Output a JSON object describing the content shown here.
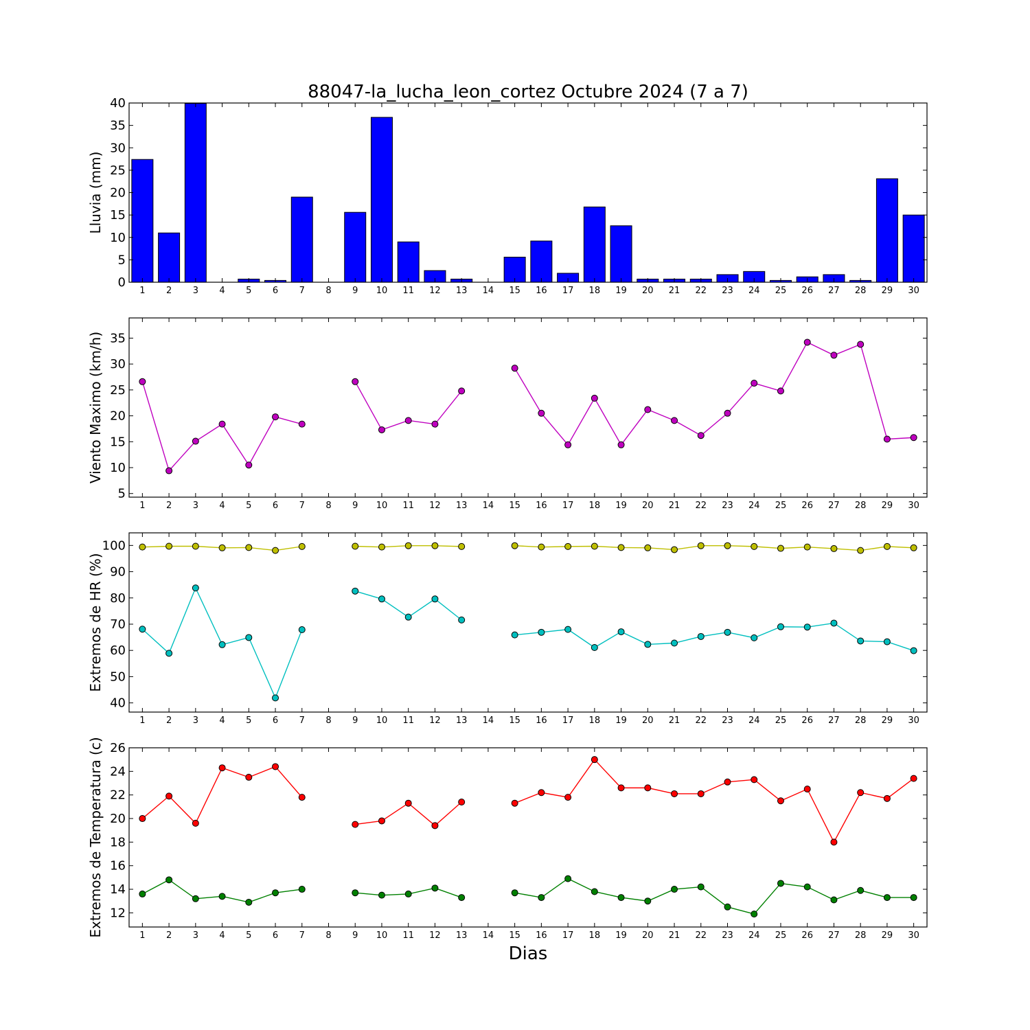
{
  "figure": {
    "title": "88047-la_lucha_leon_cortez Octubre 2024  (7 a 7)",
    "xlabel": "Dias"
  },
  "chart_data": [
    {
      "type": "bar",
      "ylabel": "Lluvia (mm)",
      "ylim": [
        0,
        40
      ],
      "yticks": [
        0,
        5,
        10,
        15,
        20,
        25,
        30,
        35,
        40
      ],
      "xlim": [
        0.5,
        30.5
      ],
      "grid": false,
      "x": [
        1,
        2,
        3,
        4,
        5,
        6,
        7,
        8,
        9,
        10,
        11,
        12,
        13,
        14,
        15,
        16,
        17,
        18,
        19,
        20,
        21,
        22,
        23,
        24,
        25,
        26,
        27,
        28,
        29,
        30
      ],
      "series": [
        {
          "color": "#0000ff",
          "values": [
            27.4,
            11.0,
            39.9,
            0,
            0.7,
            0.4,
            19.0,
            0,
            15.6,
            36.8,
            9.0,
            2.6,
            0.7,
            0,
            5.6,
            9.2,
            2.0,
            16.8,
            12.6,
            0.7,
            0.7,
            0.7,
            1.7,
            2.4,
            0.4,
            1.2,
            1.7,
            0.4,
            23.1,
            15.0
          ]
        }
      ]
    },
    {
      "type": "line",
      "ylabel": "Viento Maximo (km/h)",
      "ylim": [
        4.3,
        38.9
      ],
      "yticks": [
        5,
        10,
        15,
        20,
        25,
        30,
        35
      ],
      "xlim": [
        0.5,
        30.5
      ],
      "grid": false,
      "x": [
        1,
        2,
        3,
        4,
        5,
        6,
        7,
        8,
        9,
        10,
        11,
        12,
        13,
        14,
        15,
        16,
        17,
        18,
        19,
        20,
        21,
        22,
        23,
        24,
        25,
        26,
        27,
        28,
        29,
        30
      ],
      "series": [
        {
          "color": "#bf00bf",
          "values": [
            26.6,
            9.4,
            15.1,
            18.4,
            10.5,
            19.8,
            18.4,
            null,
            26.6,
            17.3,
            19.1,
            18.4,
            24.8,
            null,
            29.2,
            20.5,
            14.4,
            23.4,
            14.4,
            21.2,
            19.1,
            16.2,
            20.5,
            26.3,
            24.8,
            34.2,
            31.7,
            33.8,
            15.5,
            15.8
          ]
        }
      ]
    },
    {
      "type": "line",
      "ylabel": "Extremos de HR (%)",
      "ylim": [
        36.5,
        104.8
      ],
      "yticks": [
        40,
        50,
        60,
        70,
        80,
        90,
        100
      ],
      "xlim": [
        0.5,
        30.5
      ],
      "grid": false,
      "x": [
        1,
        2,
        3,
        4,
        5,
        6,
        7,
        8,
        9,
        10,
        11,
        12,
        13,
        14,
        15,
        16,
        17,
        18,
        19,
        20,
        21,
        22,
        23,
        24,
        25,
        26,
        27,
        28,
        29,
        30
      ],
      "series": [
        {
          "color": "#bfbf00",
          "values": [
            99.4,
            99.7,
            99.7,
            99.1,
            99.2,
            98.1,
            99.6,
            null,
            99.7,
            99.4,
            99.9,
            99.9,
            99.6,
            null,
            99.9,
            99.4,
            99.6,
            99.7,
            99.2,
            99.1,
            98.4,
            99.9,
            99.9,
            99.6,
            98.9,
            99.4,
            98.8,
            98.1,
            99.6,
            99.1
          ]
        },
        {
          "color": "#00bfbf",
          "values": [
            68.1,
            58.9,
            83.8,
            62.2,
            64.9,
            41.9,
            67.9,
            null,
            82.6,
            79.6,
            72.7,
            79.6,
            71.6,
            null,
            65.9,
            66.9,
            68.0,
            61.1,
            67.1,
            62.3,
            62.8,
            65.3,
            66.9,
            64.8,
            69.0,
            68.9,
            70.4,
            63.6,
            63.3,
            59.9
          ]
        }
      ]
    },
    {
      "type": "line",
      "ylabel": "Extremos de Temperatura (c)",
      "ylim": [
        10.8,
        26.0
      ],
      "yticks": [
        12,
        14,
        16,
        18,
        20,
        22,
        24,
        26
      ],
      "xlim": [
        0.5,
        30.5
      ],
      "grid": false,
      "x": [
        1,
        2,
        3,
        4,
        5,
        6,
        7,
        8,
        9,
        10,
        11,
        12,
        13,
        14,
        15,
        16,
        17,
        18,
        19,
        20,
        21,
        22,
        23,
        24,
        25,
        26,
        27,
        28,
        29,
        30
      ],
      "series": [
        {
          "color": "#ff0000",
          "values": [
            20.0,
            21.9,
            19.6,
            24.3,
            23.5,
            24.4,
            21.8,
            null,
            19.5,
            19.8,
            21.3,
            19.4,
            21.4,
            null,
            21.3,
            22.2,
            21.8,
            25.0,
            22.6,
            22.6,
            22.1,
            22.1,
            23.1,
            23.3,
            21.5,
            22.5,
            18.0,
            22.2,
            21.7,
            23.4
          ]
        },
        {
          "color": "#008000",
          "values": [
            13.6,
            14.8,
            13.2,
            13.4,
            12.9,
            13.7,
            14.0,
            null,
            13.7,
            13.5,
            13.6,
            14.1,
            13.3,
            null,
            13.7,
            13.3,
            14.9,
            13.8,
            13.3,
            13.0,
            14.0,
            14.2,
            12.5,
            11.9,
            14.5,
            14.2,
            13.1,
            13.9,
            13.3,
            13.3
          ]
        }
      ]
    }
  ]
}
